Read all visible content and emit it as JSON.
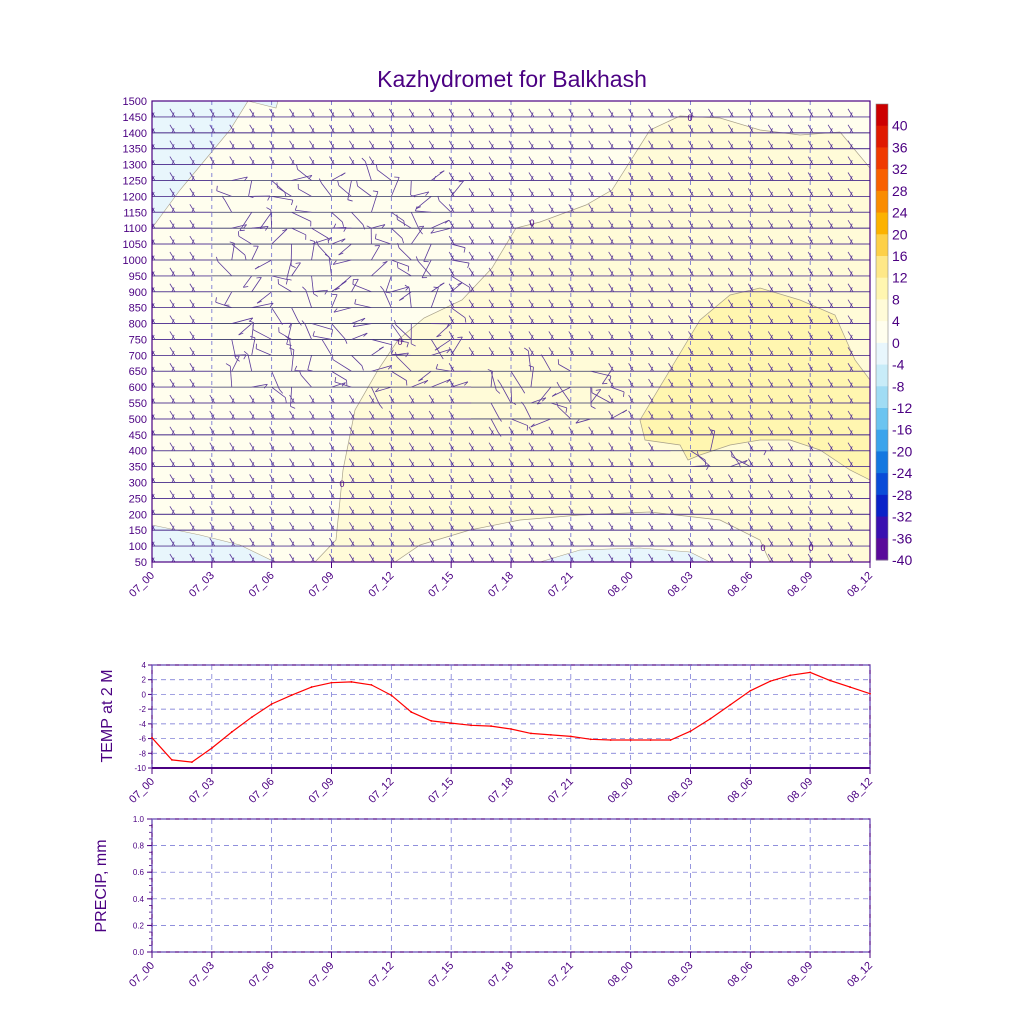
{
  "title": "Kazhydromet for Balkhash",
  "colors": {
    "text": "#4b0082",
    "frame": "#4b0082",
    "temp_line": "#ff0000",
    "barb": "#5a3a9a",
    "grid": "#6a6ad0",
    "contour_line": "#a8a08a"
  },
  "chart_data": [
    {
      "type": "heatmap",
      "name": "cross-section",
      "x_categories": [
        "07_00",
        "07_03",
        "07_06",
        "07_09",
        "07_12",
        "07_15",
        "07_18",
        "07_21",
        "08_00",
        "08_03",
        "08_06",
        "08_09",
        "08_12"
      ],
      "y_ticks": [
        50,
        100,
        150,
        200,
        250,
        300,
        350,
        400,
        450,
        500,
        550,
        600,
        650,
        700,
        750,
        800,
        850,
        900,
        950,
        1000,
        1050,
        1100,
        1150,
        1200,
        1250,
        1300,
        1350,
        1400,
        1450,
        1500
      ],
      "ylim": [
        50,
        1500
      ],
      "grid": true,
      "colorbar": {
        "labels": [
          "40",
          "36",
          "32",
          "28",
          "24",
          "20",
          "16",
          "12",
          "8",
          "4",
          "0",
          "-4",
          "-8",
          "-12",
          "-16",
          "-20",
          "-24",
          "-28",
          "-32",
          "-36",
          "-40"
        ],
        "colors": [
          "#cc0000",
          "#e01a00",
          "#f03a00",
          "#f86000",
          "#fa8c00",
          "#fcb200",
          "#fdd048",
          "#fee888",
          "#fff6b0",
          "#fffbd8",
          "#fffeee",
          "#e8f6fc",
          "#c8ecf8",
          "#a0dcf4",
          "#6cc4f0",
          "#3ca4ec",
          "#1478e0",
          "#0a4cd8",
          "#0a22c8",
          "#3a10b0",
          "#5a0a9a"
        ],
        "placement": "right"
      },
      "contour_labels": [
        "0",
        "0",
        "0",
        "0",
        "0",
        "0"
      ]
    },
    {
      "type": "line",
      "name": "temperature",
      "ylabel": "TEMP at 2 M",
      "x_categories": [
        "07_00",
        "07_03",
        "07_06",
        "07_09",
        "07_12",
        "07_15",
        "07_18",
        "07_21",
        "08_00",
        "08_03",
        "08_06",
        "08_09",
        "08_12"
      ],
      "y_ticks": [
        "4",
        "2",
        "0",
        "-2",
        "-4",
        "-6",
        "-8",
        "-10"
      ],
      "ylim": [
        -10,
        4
      ],
      "grid": true,
      "x_hours": [
        0,
        1,
        2,
        3,
        4,
        5,
        6,
        7,
        8,
        9,
        10,
        11,
        12,
        13,
        14,
        15,
        16,
        17,
        18,
        19,
        20,
        21,
        22,
        23,
        24,
        25,
        26,
        27,
        28,
        29,
        30,
        31,
        32,
        33,
        34,
        35,
        36
      ],
      "values": [
        -5.9,
        -8.9,
        -9.2,
        -7.3,
        -5.1,
        -3.1,
        -1.3,
        -0.1,
        1.0,
        1.6,
        1.7,
        1.3,
        -0.1,
        -2.4,
        -3.6,
        -3.9,
        -4.2,
        -4.3,
        -4.7,
        -5.3,
        -5.5,
        -5.7,
        -6.1,
        -6.2,
        -6.2,
        -6.2,
        -6.2,
        -5.0,
        -3.3,
        -1.4,
        0.5,
        1.8,
        2.6,
        3.0,
        1.9,
        1.0,
        0.1
      ]
    },
    {
      "type": "line",
      "name": "precipitation",
      "ylabel": "PRECIP, mm",
      "x_categories": [
        "07_00",
        "07_03",
        "07_06",
        "07_09",
        "07_12",
        "07_15",
        "07_18",
        "07_21",
        "08_00",
        "08_03",
        "08_06",
        "08_09",
        "08_12"
      ],
      "y_ticks": [
        "1.0",
        "0.8",
        "0.6",
        "0.4",
        "0.2",
        "0.0"
      ],
      "ylim": [
        0,
        1
      ],
      "grid": true,
      "values": []
    }
  ]
}
